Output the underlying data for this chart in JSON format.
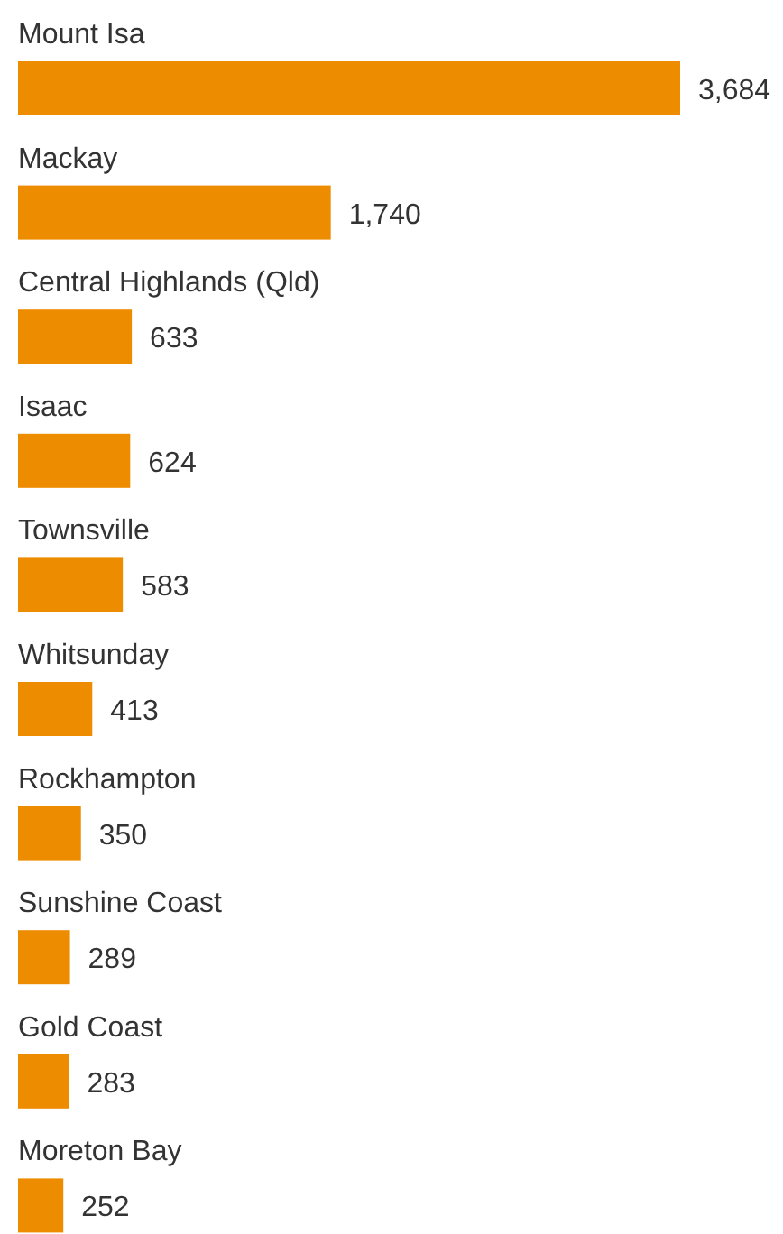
{
  "chart_data": {
    "type": "bar",
    "orientation": "horizontal",
    "categories": [
      "Mount Isa",
      "Mackay",
      "Central Highlands (Qld)",
      "Isaac",
      "Townsville",
      "Whitsunday",
      "Rockhampton",
      "Sunshine Coast",
      "Gold Coast",
      "Moreton Bay"
    ],
    "values": [
      3684,
      1740,
      633,
      624,
      583,
      413,
      350,
      289,
      283,
      252
    ],
    "value_labels": [
      "3,684",
      "1,740",
      "633",
      "624",
      "583",
      "413",
      "350",
      "289",
      "283",
      "252"
    ],
    "color": "#ee8c00"
  }
}
